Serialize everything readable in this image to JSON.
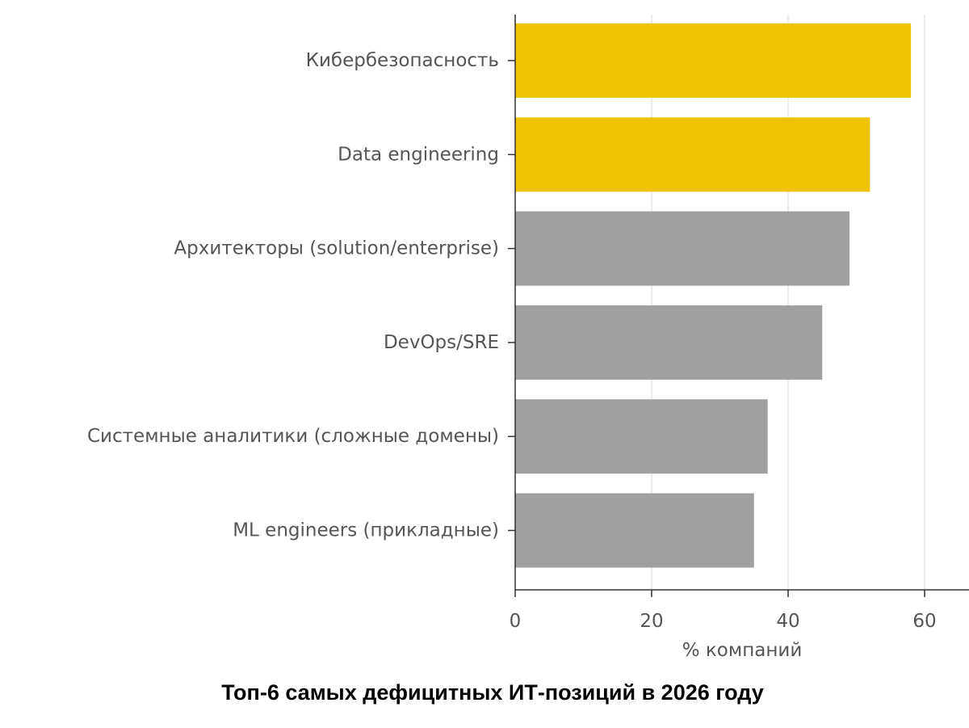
{
  "caption": "Топ-6 самых дефицитных ИТ-позиций в 2026 году",
  "chart_data": {
    "type": "bar",
    "orientation": "horizontal",
    "categories": [
      "Кибербезопасность",
      "Data engineering",
      "Архитекторы (solution/enterprise)",
      "DevOps/SRE",
      "Системные аналитики (сложные домены)",
      "ML engineers (прикладные)"
    ],
    "values": [
      58,
      52,
      49,
      45,
      37,
      35
    ],
    "highlighted": [
      true,
      true,
      false,
      false,
      false,
      false
    ],
    "colors": {
      "highlight": "#F0C300",
      "normal": "#A0A0A0",
      "grid": "#E6E6E6",
      "axis": "#333333",
      "text": "#555555"
    },
    "xlabel": "% компаний",
    "ylabel": "",
    "xlim": [
      0,
      66
    ],
    "xticks": [
      0,
      20,
      40,
      60
    ],
    "grid": "vertical"
  }
}
